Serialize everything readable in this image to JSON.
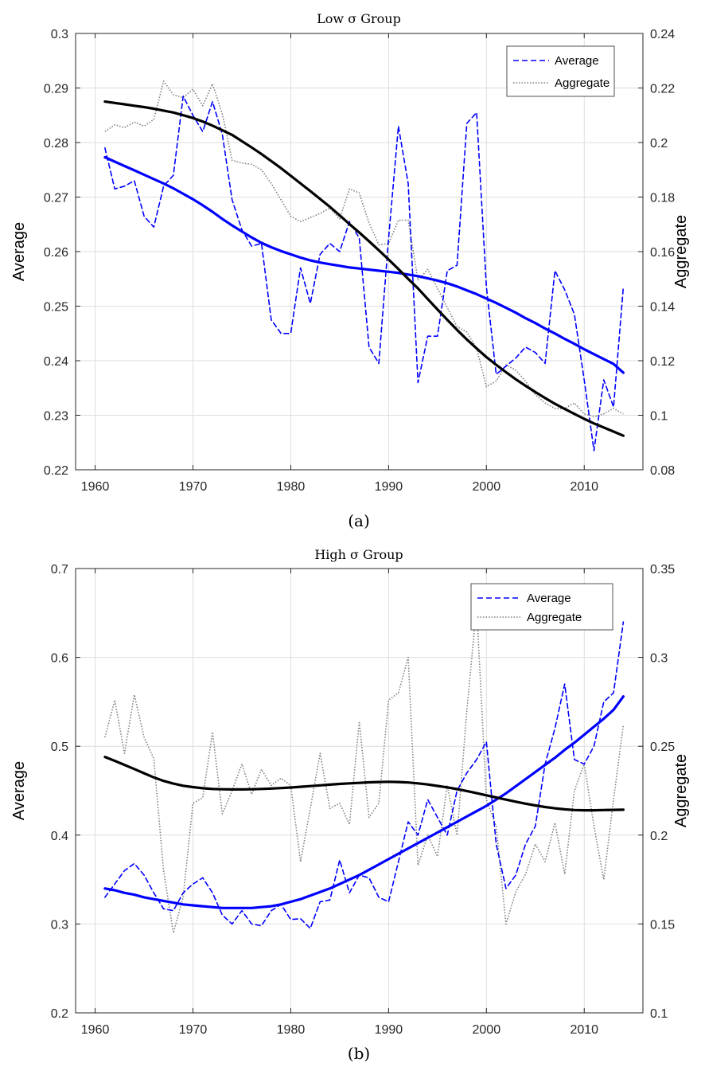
{
  "chart_data": [
    {
      "type": "line",
      "title": "Low σ Group",
      "caption": "(a)",
      "xlabel": "",
      "ylabel_left": "Average",
      "ylabel_right": "Aggregate",
      "xlim": [
        1958,
        2016
      ],
      "xticks": [
        1960,
        1970,
        1980,
        1990,
        2000,
        2010
      ],
      "ylim_left": [
        0.22,
        0.3
      ],
      "yticks_left": [
        "0.22",
        "0.23",
        "0.24",
        "0.25",
        "0.26",
        "0.27",
        "0.28",
        "0.29",
        "0.3"
      ],
      "ylim_right": [
        0.08,
        0.24
      ],
      "yticks_right": [
        "0.08",
        "0.1",
        "0.12",
        "0.14",
        "0.16",
        "0.18",
        "0.2",
        "0.22",
        "0.24"
      ],
      "grid": true,
      "legend_position": "top-right",
      "x": [
        1961,
        1962,
        1963,
        1964,
        1965,
        1966,
        1967,
        1968,
        1969,
        1970,
        1971,
        1972,
        1973,
        1974,
        1975,
        1976,
        1977,
        1978,
        1979,
        1980,
        1981,
        1982,
        1983,
        1984,
        1985,
        1986,
        1987,
        1988,
        1989,
        1990,
        1991,
        1992,
        1993,
        1994,
        1995,
        1996,
        1997,
        1998,
        1999,
        2000,
        2001,
        2002,
        2003,
        2004,
        2005,
        2006,
        2007,
        2008,
        2009,
        2010,
        2011,
        2012,
        2013,
        2014
      ],
      "series": [
        {
          "name": "Average",
          "axis": "left",
          "style": "dashed",
          "color": "#0000ff",
          "values": [
            0.279,
            0.2715,
            0.272,
            0.273,
            0.2665,
            0.2645,
            0.272,
            0.274,
            0.2885,
            0.285,
            0.282,
            0.2875,
            0.2815,
            0.2695,
            0.264,
            0.261,
            0.2615,
            0.2475,
            0.245,
            0.245,
            0.257,
            0.2505,
            0.2595,
            0.2615,
            0.26,
            0.2655,
            0.2625,
            0.2425,
            0.2395,
            0.2625,
            0.283,
            0.2725,
            0.236,
            0.2445,
            0.2445,
            0.2565,
            0.2575,
            0.2835,
            0.2855,
            0.2535,
            0.2375,
            0.239,
            0.2405,
            0.2425,
            0.2415,
            0.2395,
            0.2565,
            0.253,
            0.2485,
            0.2365,
            0.2235,
            0.2365,
            0.2315,
            0.2535
          ]
        },
        {
          "name": "Aggregate",
          "axis": "right",
          "style": "dotted",
          "color": "#7f7f7f",
          "values": [
            0.204,
            0.2065,
            0.2055,
            0.2075,
            0.206,
            0.2085,
            0.2225,
            0.2175,
            0.2165,
            0.2195,
            0.2135,
            0.2215,
            0.2105,
            0.1935,
            0.1925,
            0.192,
            0.19,
            0.185,
            0.179,
            0.173,
            0.171,
            0.1725,
            0.174,
            0.176,
            0.172,
            0.183,
            0.1815,
            0.1705,
            0.1625,
            0.163,
            0.1715,
            0.1715,
            0.1495,
            0.1535,
            0.1465,
            0.1395,
            0.1325,
            0.1305,
            0.1245,
            0.1105,
            0.1125,
            0.1185,
            0.1165,
            0.1125,
            0.1075,
            0.1045,
            0.1025,
            0.1025,
            0.1045,
            0.1005,
            0.0995,
            0.1005,
            0.1025,
            0.1005
          ]
        },
        {
          "name": "",
          "axis": "left",
          "style": "solid",
          "color": "#0000ff",
          "values": [
            0.2773,
            0.2765,
            0.2757,
            0.2749,
            0.2741,
            0.2733,
            0.2725,
            0.2716,
            0.2706,
            0.2696,
            0.2685,
            0.2673,
            0.266,
            0.2648,
            0.2637,
            0.2626,
            0.2616,
            0.2608,
            0.2601,
            0.2595,
            0.2589,
            0.2584,
            0.258,
            0.2577,
            0.2574,
            0.2571,
            0.2569,
            0.2567,
            0.2565,
            0.2563,
            0.2561,
            0.2558,
            0.2555,
            0.2551,
            0.2547,
            0.2542,
            0.2536,
            0.2529,
            0.2522,
            0.2514,
            0.2506,
            0.2497,
            0.2488,
            0.2478,
            0.2469,
            0.2459,
            0.245,
            0.244,
            0.2431,
            0.2421,
            0.2412,
            0.2403,
            0.2394,
            0.2378
          ]
        },
        {
          "name": "",
          "axis": "right",
          "style": "solid",
          "color": "#000000",
          "values": [
            0.215,
            0.2145,
            0.214,
            0.2135,
            0.213,
            0.2124,
            0.2117,
            0.211,
            0.21,
            0.209,
            0.2077,
            0.2062,
            0.2045,
            0.2028,
            0.2005,
            0.1982,
            0.1958,
            0.1932,
            0.1906,
            0.1878,
            0.185,
            0.1822,
            0.1793,
            0.1764,
            0.1733,
            0.1701,
            0.167,
            0.1638,
            0.1605,
            0.1571,
            0.1536,
            0.15,
            0.1465,
            0.1426,
            0.1388,
            0.135,
            0.1313,
            0.1278,
            0.1245,
            0.1213,
            0.1185,
            0.1158,
            0.1132,
            0.1108,
            0.1085,
            0.1063,
            0.1042,
            0.1023,
            0.1005,
            0.0987,
            0.097,
            0.0955,
            0.094,
            0.0925
          ]
        }
      ]
    },
    {
      "type": "line",
      "title": "High σ Group",
      "caption": "(b)",
      "xlabel": "",
      "ylabel_left": "Average",
      "ylabel_right": "Aggregate",
      "xlim": [
        1958,
        2016
      ],
      "xticks": [
        1960,
        1970,
        1980,
        1990,
        2000,
        2010
      ],
      "ylim_left": [
        0.2,
        0.7
      ],
      "yticks_left": [
        "0.2",
        "0.3",
        "0.4",
        "0.5",
        "0.6",
        "0.7"
      ],
      "ylim_right": [
        0.1,
        0.35
      ],
      "yticks_right": [
        "0.1",
        "0.15",
        "0.2",
        "0.25",
        "0.3",
        "0.35"
      ],
      "grid": true,
      "legend_position": "top-right",
      "x": [
        1961,
        1962,
        1963,
        1964,
        1965,
        1966,
        1967,
        1968,
        1969,
        1970,
        1971,
        1972,
        1973,
        1974,
        1975,
        1976,
        1977,
        1978,
        1979,
        1980,
        1981,
        1982,
        1983,
        1984,
        1985,
        1986,
        1987,
        1988,
        1989,
        1990,
        1991,
        1992,
        1993,
        1994,
        1995,
        1996,
        1997,
        1998,
        1999,
        2000,
        2001,
        2002,
        2003,
        2004,
        2005,
        2006,
        2007,
        2008,
        2009,
        2010,
        2011,
        2012,
        2013,
        2014
      ],
      "series": [
        {
          "name": "Average",
          "axis": "left",
          "style": "dashed",
          "color": "#0000ff",
          "values": [
            0.33,
            0.345,
            0.36,
            0.368,
            0.355,
            0.335,
            0.317,
            0.315,
            0.335,
            0.345,
            0.352,
            0.335,
            0.31,
            0.3,
            0.315,
            0.3,
            0.298,
            0.315,
            0.322,
            0.305,
            0.306,
            0.295,
            0.325,
            0.327,
            0.372,
            0.335,
            0.355,
            0.352,
            0.33,
            0.325,
            0.37,
            0.415,
            0.4,
            0.44,
            0.42,
            0.4,
            0.45,
            0.47,
            0.485,
            0.505,
            0.39,
            0.34,
            0.355,
            0.39,
            0.41,
            0.48,
            0.52,
            0.57,
            0.485,
            0.48,
            0.5,
            0.55,
            0.56,
            0.64
          ]
        },
        {
          "name": "Aggregate",
          "axis": "right",
          "style": "dotted",
          "color": "#7f7f7f",
          "values": [
            0.255,
            0.276,
            0.246,
            0.279,
            0.255,
            0.243,
            0.18,
            0.145,
            0.165,
            0.218,
            0.221,
            0.258,
            0.212,
            0.225,
            0.24,
            0.223,
            0.237,
            0.228,
            0.232,
            0.228,
            0.185,
            0.215,
            0.246,
            0.215,
            0.218,
            0.206,
            0.264,
            0.21,
            0.218,
            0.276,
            0.28,
            0.3,
            0.183,
            0.2,
            0.188,
            0.228,
            0.2,
            0.27,
            0.329,
            0.22,
            0.205,
            0.15,
            0.168,
            0.178,
            0.195,
            0.185,
            0.207,
            0.178,
            0.225,
            0.24,
            0.205,
            0.175,
            0.22,
            0.262
          ]
        },
        {
          "name": "",
          "axis": "left",
          "style": "solid",
          "color": "#0000ff",
          "values": [
            0.34,
            0.338,
            0.335,
            0.333,
            0.33,
            0.328,
            0.326,
            0.324,
            0.322,
            0.321,
            0.32,
            0.319,
            0.318,
            0.318,
            0.318,
            0.318,
            0.319,
            0.32,
            0.322,
            0.325,
            0.328,
            0.332,
            0.336,
            0.34,
            0.345,
            0.35,
            0.355,
            0.361,
            0.367,
            0.373,
            0.379,
            0.385,
            0.391,
            0.397,
            0.403,
            0.409,
            0.415,
            0.421,
            0.427,
            0.433,
            0.44,
            0.447,
            0.455,
            0.463,
            0.471,
            0.479,
            0.487,
            0.496,
            0.504,
            0.513,
            0.522,
            0.531,
            0.541,
            0.556
          ]
        },
        {
          "name": "",
          "axis": "right",
          "style": "solid",
          "color": "#000000",
          "values": [
            0.244,
            0.2418,
            0.2395,
            0.2372,
            0.2348,
            0.2325,
            0.2305,
            0.229,
            0.2278,
            0.227,
            0.2264,
            0.226,
            0.2258,
            0.2257,
            0.2257,
            0.2258,
            0.226,
            0.2262,
            0.2265,
            0.2268,
            0.2272,
            0.2276,
            0.228,
            0.2284,
            0.2288,
            0.2291,
            0.2294,
            0.2297,
            0.2299,
            0.23,
            0.2299,
            0.2296,
            0.2291,
            0.2285,
            0.2277,
            0.2269,
            0.2259,
            0.2248,
            0.2236,
            0.2224,
            0.2212,
            0.22,
            0.2188,
            0.2177,
            0.2167,
            0.2158,
            0.2151,
            0.2145,
            0.2141,
            0.214,
            0.214,
            0.2141,
            0.2142,
            0.2143
          ]
        }
      ]
    }
  ]
}
